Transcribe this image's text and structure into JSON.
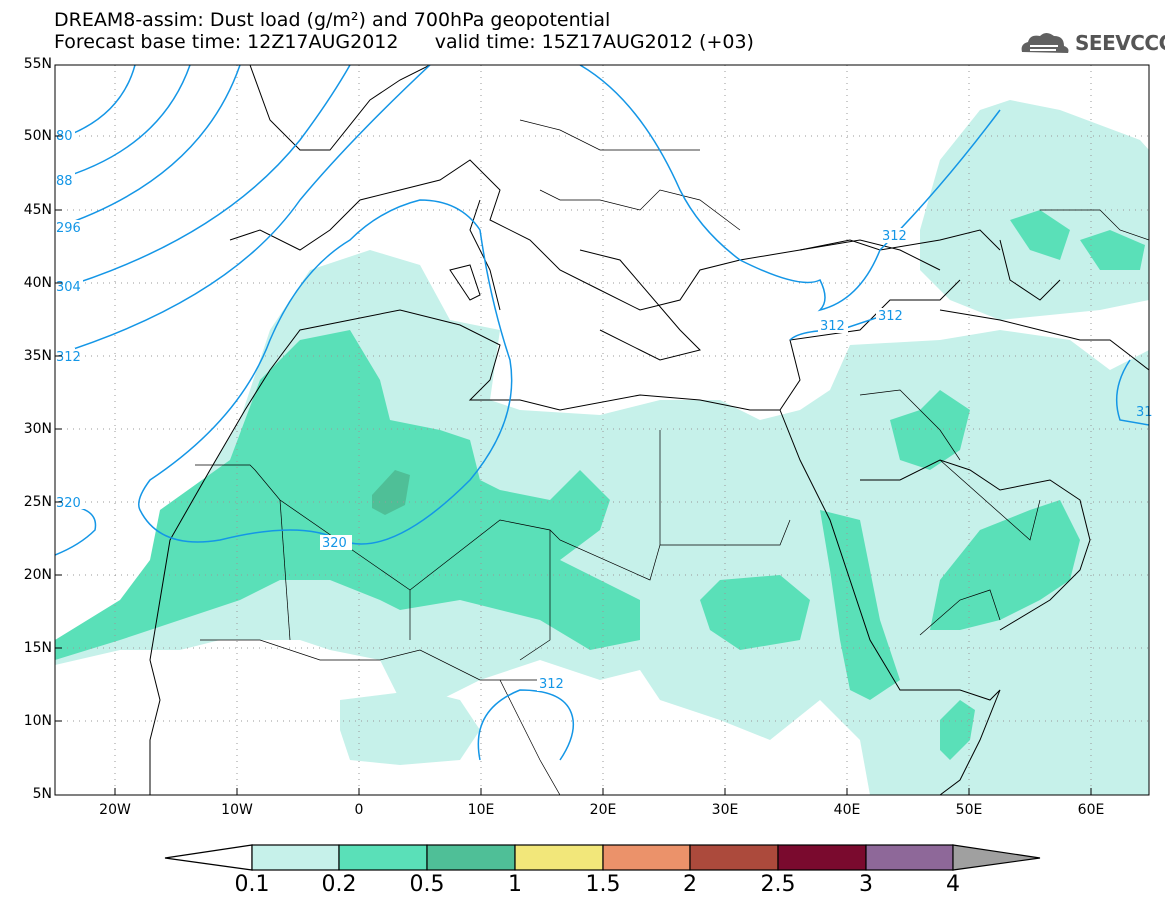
{
  "title_line1": "DREAM8-assim: Dust load (g/m²) and 700hPa geopotential",
  "title_line2": "Forecast base time: 12Z17AUG2012      valid time: 15Z17AUG2012 (+03)",
  "logo_text": "SEEVCCC",
  "lat_labels": [
    "55N",
    "50N",
    "45N",
    "40N",
    "35N",
    "30N",
    "25N",
    "20N",
    "15N",
    "10N",
    "5N"
  ],
  "lon_labels": [
    "20W",
    "10W",
    "0",
    "10E",
    "20E",
    "30E",
    "40E",
    "50E",
    "60E"
  ],
  "contour_labels": [
    "80",
    "88",
    "296",
    "304",
    "312",
    "320",
    "320",
    "312",
    "312",
    "312",
    "312",
    "31"
  ],
  "colorbar": {
    "labels": [
      "0.1",
      "0.2",
      "0.5",
      "1",
      "1.5",
      "2",
      "2.5",
      "3",
      "4"
    ],
    "colors": [
      "#c6f1ea",
      "#5ae0b8",
      "#4fbf97",
      "#f2e77a",
      "#eb926a",
      "#ac4a3c",
      "#7a0a2e",
      "#8e6899",
      "#a0a0a0"
    ]
  },
  "colors": {
    "dust_01": "#c6f1ea",
    "dust_02": "#5ae0b8",
    "dust_05": "#4fbf97",
    "contour": "#1496e6",
    "border": "#000000"
  }
}
